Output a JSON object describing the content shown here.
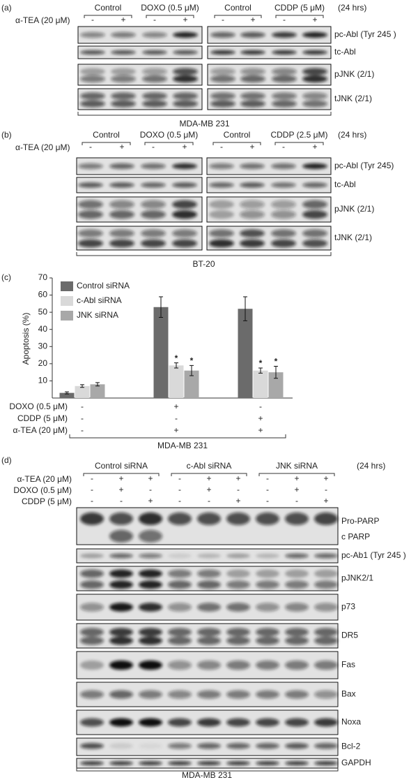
{
  "panels": [
    {
      "label": "(a)",
      "groups": [
        "Control",
        "DOXO (0.5 μM)",
        "Control",
        "CDDP (5 μM)"
      ],
      "duration": "(24 hrs)",
      "treatment": "α-TEA (20 μM)",
      "signs": [
        "-",
        "+",
        "-",
        "+",
        "-",
        "+",
        "-",
        "+"
      ],
      "rows": [
        "pc-Abl (Tyr 245 )",
        "tc-Abl",
        "pJNK (2/1)",
        "tJNK (2/1)"
      ],
      "cell_line": "MDA-MB 231"
    },
    {
      "label": "(b)",
      "groups": [
        "Control",
        "DOXO (0.5 μM)",
        "Control",
        "CDDP (2.5 μM)"
      ],
      "duration": "(24 hrs)",
      "treatment": "α-TEA (20 μM)",
      "signs": [
        "-",
        "+",
        "-",
        "+",
        "-",
        "+",
        "-",
        "+"
      ],
      "rows": [
        "pc-Abl (Tyr 245)",
        "tc-Abl",
        "pJNK (2/1)",
        "tJNK (2/1)"
      ],
      "cell_line": "BT-20"
    }
  ],
  "chart_data": {
    "type": "bar",
    "label": "(c)",
    "y_label": "Apoptosis (%)",
    "categories": [
      null,
      null,
      null
    ],
    "series": [
      {
        "name": "Control siRNA",
        "color": "#6b6b6b",
        "values": [
          3,
          53,
          52
        ],
        "errors": [
          0.6,
          6,
          7
        ],
        "markers": [
          null,
          null,
          null
        ]
      },
      {
        "name": "c-Abl siRNA",
        "color": "#d9d9d9",
        "values": [
          7,
          19,
          16
        ],
        "errors": [
          0.8,
          1.5,
          1.5
        ],
        "markers": [
          null,
          "*",
          "*"
        ]
      },
      {
        "name": "JNK siRNA",
        "color": "#a8a8a8",
        "values": [
          8,
          16,
          15
        ],
        "errors": [
          1,
          3,
          3.5
        ],
        "markers": [
          null,
          "*",
          "*"
        ]
      }
    ],
    "ylim": [
      0,
      70
    ],
    "yticks": [
      10,
      20,
      30,
      40,
      50,
      60,
      70
    ],
    "treatments": [
      {
        "name": "DOXO (0.5 μM)",
        "signs": [
          "-",
          "+",
          "-"
        ]
      },
      {
        "name": "CDDP (5 μM)",
        "signs": [
          "-",
          "-",
          "+"
        ]
      },
      {
        "name": "α-TEA (20 μM)",
        "signs": [
          "-",
          "+",
          "+"
        ]
      }
    ],
    "cell_line": "MDA-MB 231",
    "legend": "top-left"
  },
  "panel_d": {
    "label": "(d)",
    "groups": [
      "Control siRNA",
      "c-Abl siRNA",
      "JNK siRNA"
    ],
    "duration": "(24 hrs)",
    "treatments": [
      {
        "name": "α-TEA (20 μM)",
        "signs": [
          "-",
          "+",
          "+",
          "-",
          "+",
          "+",
          "-",
          "+",
          "+"
        ]
      },
      {
        "name": "DOXO (0.5 μM)",
        "signs": [
          "-",
          "+",
          "-",
          "-",
          "+",
          "-",
          "-",
          "+",
          "-"
        ]
      },
      {
        "name": "CDDP (5 μM)",
        "signs": [
          "-",
          "-",
          "+",
          "-",
          "-",
          "+",
          "-",
          "-",
          "+"
        ]
      }
    ],
    "rows": [
      "Pro-PARP",
      "c PARP",
      "pc-Ab1 (Tyr 245 )",
      "pJNK2/1",
      "p73",
      "DR5",
      "Fas",
      "Bax",
      "Noxa",
      "Bcl-2",
      "GAPDH"
    ],
    "cell_line": "MDA-MB 231"
  }
}
